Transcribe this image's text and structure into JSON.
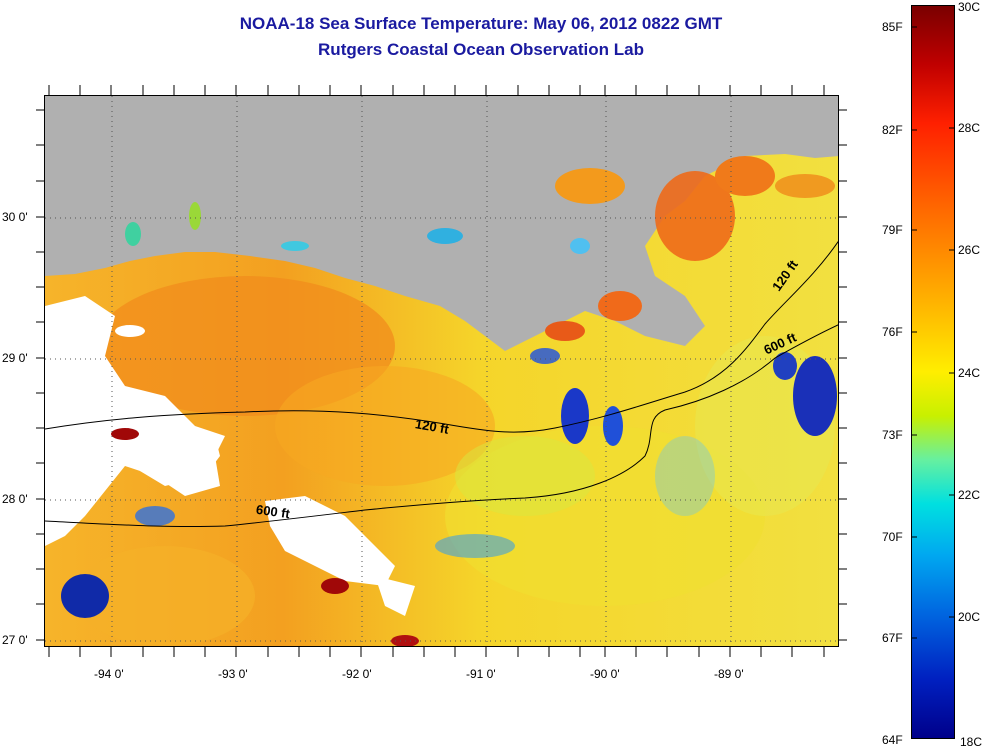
{
  "title": {
    "line1": "NOAA-18 Sea Surface Temperature:  May 06, 2012 0822 GMT",
    "line2": "Rutgers Coastal Ocean Observation Lab"
  },
  "map": {
    "lat_labels": [
      "30 0'",
      "29 0'",
      "28 0'",
      "27 0'"
    ],
    "lon_labels": [
      "-94 0'",
      "-93 0'",
      "-92 0'",
      "-91 0'",
      "-90 0'",
      "-89 0'"
    ],
    "contour_labels": [
      {
        "text": "120 ft",
        "id": "contour-120-west"
      },
      {
        "text": "120 ft",
        "id": "contour-120-east"
      },
      {
        "text": "600 ft",
        "id": "contour-600-west"
      },
      {
        "text": "600 ft",
        "id": "contour-600-east"
      }
    ],
    "colors": {
      "land": "#b0b0b0",
      "cloud": "#ffffff",
      "warm": "#ff9a20",
      "mid": "#f4d020",
      "cool": "#1030c0"
    }
  },
  "colorbar": {
    "fahrenheit_labels": [
      "85F",
      "82F",
      "79F",
      "76F",
      "73F",
      "70F",
      "67F",
      "64F"
    ],
    "celsius_labels": [
      "30C",
      "28C",
      "26C",
      "24C",
      "22C",
      "20C",
      "18C"
    ],
    "range_c": [
      18,
      30
    ]
  }
}
